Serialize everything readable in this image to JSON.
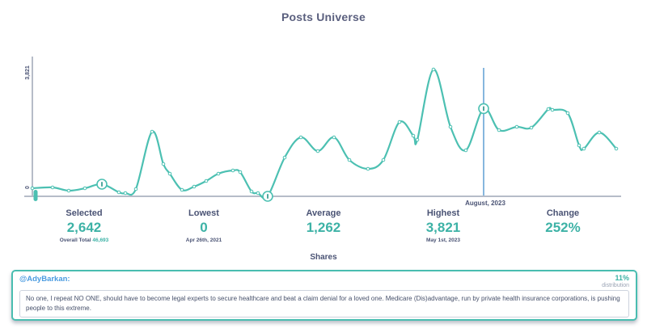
{
  "title": "Posts Universe",
  "chart_data": {
    "type": "line",
    "title": "Posts Universe",
    "series_name": "Shares",
    "ylim": [
      0,
      3821
    ],
    "ytick_top": "3,821",
    "ytick_bottom": "0",
    "line_color": "#4cc0b2",
    "annotation": {
      "label": "August, 2023",
      "x": 598,
      "value": 2642,
      "line_color": "#5e9fd4"
    },
    "special_marker_indices": [
      4,
      19,
      33
    ],
    "series": [
      {
        "name": "Shares",
        "points": [
          [
            40,
            243
          ],
          [
            65,
            268
          ],
          [
            85,
            170
          ],
          [
            105,
            243
          ],
          [
            126,
            365
          ],
          [
            147,
            122
          ],
          [
            155,
            97
          ],
          [
            168,
            219
          ],
          [
            188,
            1947
          ],
          [
            202,
            973
          ],
          [
            210,
            681
          ],
          [
            225,
            195
          ],
          [
            240,
            292
          ],
          [
            255,
            462
          ],
          [
            270,
            681
          ],
          [
            288,
            779
          ],
          [
            297,
            730
          ],
          [
            311,
            146
          ],
          [
            319,
            97
          ],
          [
            331,
            0
          ],
          [
            352,
            1168
          ],
          [
            372,
            1777
          ],
          [
            393,
            1363
          ],
          [
            413,
            1777
          ],
          [
            432,
            1095
          ],
          [
            455,
            827
          ],
          [
            474,
            1095
          ],
          [
            494,
            2239
          ],
          [
            511,
            1825
          ],
          [
            516,
            1704
          ],
          [
            536,
            3821
          ],
          [
            557,
            2093
          ],
          [
            576,
            1387
          ],
          [
            598,
            2642
          ],
          [
            617,
            1996
          ],
          [
            639,
            2093
          ],
          [
            657,
            2069
          ],
          [
            678,
            2628
          ],
          [
            683,
            2604
          ],
          [
            702,
            2506
          ],
          [
            716,
            1533
          ],
          [
            722,
            1436
          ],
          [
            741,
            1922
          ],
          [
            762,
            1436
          ]
        ]
      }
    ]
  },
  "stats": [
    {
      "label": "Selected",
      "value": "2,642",
      "sub_prefix": "Overall Total ",
      "sub_teal": "46,693"
    },
    {
      "label": "Lowest",
      "value": "0",
      "sub": "Apr 26th, 2021"
    },
    {
      "label": "Average",
      "value": "1,262",
      "sub": ""
    },
    {
      "label": "Highest",
      "value": "3,821",
      "sub": "May 1st, 2023"
    },
    {
      "label": "Change",
      "value": "252%",
      "sub": ""
    }
  ],
  "axis_title": "Shares",
  "quote_box": {
    "handle": "@AdyBarkan:",
    "percent": "11%",
    "percent_label": "distribution",
    "text": "No one, I repeat NO ONE, should have to become legal experts to secure healthcare and beat a claim denial for a loved one. Medicare (Dis)advantage, run by private health insurance corporations, is pushing people to this extreme."
  },
  "colors": {
    "teal": "#3db2a6",
    "line_teal": "#4cc0b2",
    "dark_label": "#4a5374",
    "annotation_blue": "#5e9fd4",
    "handle_blue": "#4a9be0",
    "axis_gray": "#b6bcc8"
  }
}
